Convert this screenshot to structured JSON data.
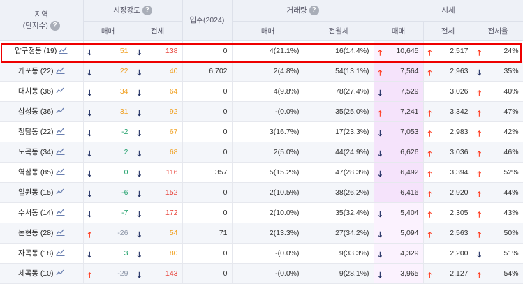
{
  "header": {
    "region": "지역",
    "region_sub": "(단지수)",
    "market_strength": "시장강도",
    "move_in": "입주(2024)",
    "volume": "거래량",
    "price": "시세",
    "sale": "매매",
    "jeonse": "전세",
    "rent": "전월세",
    "ratio": "전세율",
    "help": "?"
  },
  "rows": [
    {
      "region": "압구정동 (19)",
      "ms_sale_dir": "down",
      "ms_sale": "51",
      "ms_sale_color": "orange",
      "ms_jeonse_dir": "down",
      "ms_jeonse": "138",
      "ms_jeonse_color": "red",
      "move_in": "0",
      "vol_sale": "4(21.1%)",
      "vol_rent": "16(14.4%)",
      "price_sale_dir": "up",
      "price_sale": "10,645",
      "price_jeonse_dir": "up",
      "price_jeonse": "2,517",
      "ratio_dir": "up",
      "ratio": "24%",
      "hi": false
    },
    {
      "region": "개포동 (22)",
      "ms_sale_dir": "down",
      "ms_sale": "22",
      "ms_sale_color": "orange",
      "ms_jeonse_dir": "down",
      "ms_jeonse": "40",
      "ms_jeonse_color": "orange",
      "move_in": "6,702",
      "vol_sale": "2(4.8%)",
      "vol_rent": "54(13.1%)",
      "price_sale_dir": "up",
      "price_sale": "7,564",
      "price_jeonse_dir": "up",
      "price_jeonse": "2,963",
      "ratio_dir": "down",
      "ratio": "35%",
      "hi": true
    },
    {
      "region": "대치동 (36)",
      "ms_sale_dir": "down",
      "ms_sale": "34",
      "ms_sale_color": "orange",
      "ms_jeonse_dir": "down",
      "ms_jeonse": "64",
      "ms_jeonse_color": "orange",
      "move_in": "0",
      "vol_sale": "4(9.8%)",
      "vol_rent": "78(27.4%)",
      "price_sale_dir": "down",
      "price_sale": "7,529",
      "price_jeonse_dir": "",
      "price_jeonse": "3,026",
      "ratio_dir": "up",
      "ratio": "40%",
      "hi": true
    },
    {
      "region": "삼성동 (36)",
      "ms_sale_dir": "down",
      "ms_sale": "31",
      "ms_sale_color": "orange",
      "ms_jeonse_dir": "down",
      "ms_jeonse": "92",
      "ms_jeonse_color": "orange",
      "move_in": "0",
      "vol_sale": "-(0.0%)",
      "vol_rent": "35(25.0%)",
      "price_sale_dir": "up",
      "price_sale": "7,241",
      "price_jeonse_dir": "up",
      "price_jeonse": "3,342",
      "ratio_dir": "up",
      "ratio": "47%",
      "hi": true
    },
    {
      "region": "청담동 (22)",
      "ms_sale_dir": "down",
      "ms_sale": "-2",
      "ms_sale_color": "green",
      "ms_jeonse_dir": "down",
      "ms_jeonse": "67",
      "ms_jeonse_color": "orange",
      "move_in": "0",
      "vol_sale": "3(16.7%)",
      "vol_rent": "17(23.3%)",
      "price_sale_dir": "down",
      "price_sale": "7,053",
      "price_jeonse_dir": "up",
      "price_jeonse": "2,983",
      "ratio_dir": "up",
      "ratio": "42%",
      "hi": true
    },
    {
      "region": "도곡동 (34)",
      "ms_sale_dir": "down",
      "ms_sale": "2",
      "ms_sale_color": "green",
      "ms_jeonse_dir": "down",
      "ms_jeonse": "68",
      "ms_jeonse_color": "orange",
      "move_in": "0",
      "vol_sale": "2(5.0%)",
      "vol_rent": "44(24.9%)",
      "price_sale_dir": "down",
      "price_sale": "6,626",
      "price_jeonse_dir": "up",
      "price_jeonse": "3,036",
      "ratio_dir": "up",
      "ratio": "46%",
      "hi": true
    },
    {
      "region": "역삼동 (85)",
      "ms_sale_dir": "down",
      "ms_sale": "0",
      "ms_sale_color": "green",
      "ms_jeonse_dir": "down",
      "ms_jeonse": "116",
      "ms_jeonse_color": "red",
      "move_in": "357",
      "vol_sale": "5(15.2%)",
      "vol_rent": "47(28.3%)",
      "price_sale_dir": "down",
      "price_sale": "6,492",
      "price_jeonse_dir": "up",
      "price_jeonse": "3,394",
      "ratio_dir": "up",
      "ratio": "52%",
      "hi": true
    },
    {
      "region": "일원동 (15)",
      "ms_sale_dir": "down",
      "ms_sale": "-6",
      "ms_sale_color": "green",
      "ms_jeonse_dir": "down",
      "ms_jeonse": "152",
      "ms_jeonse_color": "red",
      "move_in": "0",
      "vol_sale": "2(10.5%)",
      "vol_rent": "38(26.2%)",
      "price_sale_dir": "",
      "price_sale": "6,416",
      "price_jeonse_dir": "up",
      "price_jeonse": "2,920",
      "ratio_dir": "up",
      "ratio": "44%",
      "hi": true
    },
    {
      "region": "수서동 (14)",
      "ms_sale_dir": "down",
      "ms_sale": "-7",
      "ms_sale_color": "green",
      "ms_jeonse_dir": "down",
      "ms_jeonse": "172",
      "ms_jeonse_color": "red",
      "move_in": "0",
      "vol_sale": "2(10.0%)",
      "vol_rent": "35(32.4%)",
      "price_sale_dir": "down",
      "price_sale": "5,404",
      "price_jeonse_dir": "up",
      "price_jeonse": "2,305",
      "ratio_dir": "up",
      "ratio": "43%",
      "hi": false
    },
    {
      "region": "논현동 (28)",
      "ms_sale_dir": "up",
      "ms_sale": "-26",
      "ms_sale_color": "gray",
      "ms_jeonse_dir": "down",
      "ms_jeonse": "54",
      "ms_jeonse_color": "orange",
      "move_in": "71",
      "vol_sale": "2(13.3%)",
      "vol_rent": "27(34.2%)",
      "price_sale_dir": "down",
      "price_sale": "5,094",
      "price_jeonse_dir": "up",
      "price_jeonse": "2,563",
      "ratio_dir": "up",
      "ratio": "50%",
      "hi": false
    },
    {
      "region": "자곡동 (18)",
      "ms_sale_dir": "down",
      "ms_sale": "3",
      "ms_sale_color": "green",
      "ms_jeonse_dir": "down",
      "ms_jeonse": "80",
      "ms_jeonse_color": "orange",
      "move_in": "0",
      "vol_sale": "-(0.0%)",
      "vol_rent": "9(33.3%)",
      "price_sale_dir": "down",
      "price_sale": "4,329",
      "price_jeonse_dir": "",
      "price_jeonse": "2,200",
      "ratio_dir": "down",
      "ratio": "51%",
      "hi": false
    },
    {
      "region": "세곡동 (10)",
      "ms_sale_dir": "up",
      "ms_sale": "-29",
      "ms_sale_color": "gray",
      "ms_jeonse_dir": "down",
      "ms_jeonse": "143",
      "ms_jeonse_color": "red",
      "move_in": "0",
      "vol_sale": "-(0.0%)",
      "vol_rent": "9(28.1%)",
      "price_sale_dir": "down",
      "price_sale": "3,965",
      "price_jeonse_dir": "up",
      "price_jeonse": "2,127",
      "ratio_dir": "up",
      "ratio": "54%",
      "hi": false
    }
  ],
  "colors": {
    "up": "#ff3b1f",
    "down": "#1b2a5e",
    "orange": "#f0a020",
    "red": "#e8453c",
    "green": "#1fa06a",
    "selection": "#ee0000"
  },
  "icons": {
    "up": "arrow-up-icon",
    "down": "arrow-down-icon",
    "chart": "trend-chart-icon",
    "help": "help-icon"
  }
}
